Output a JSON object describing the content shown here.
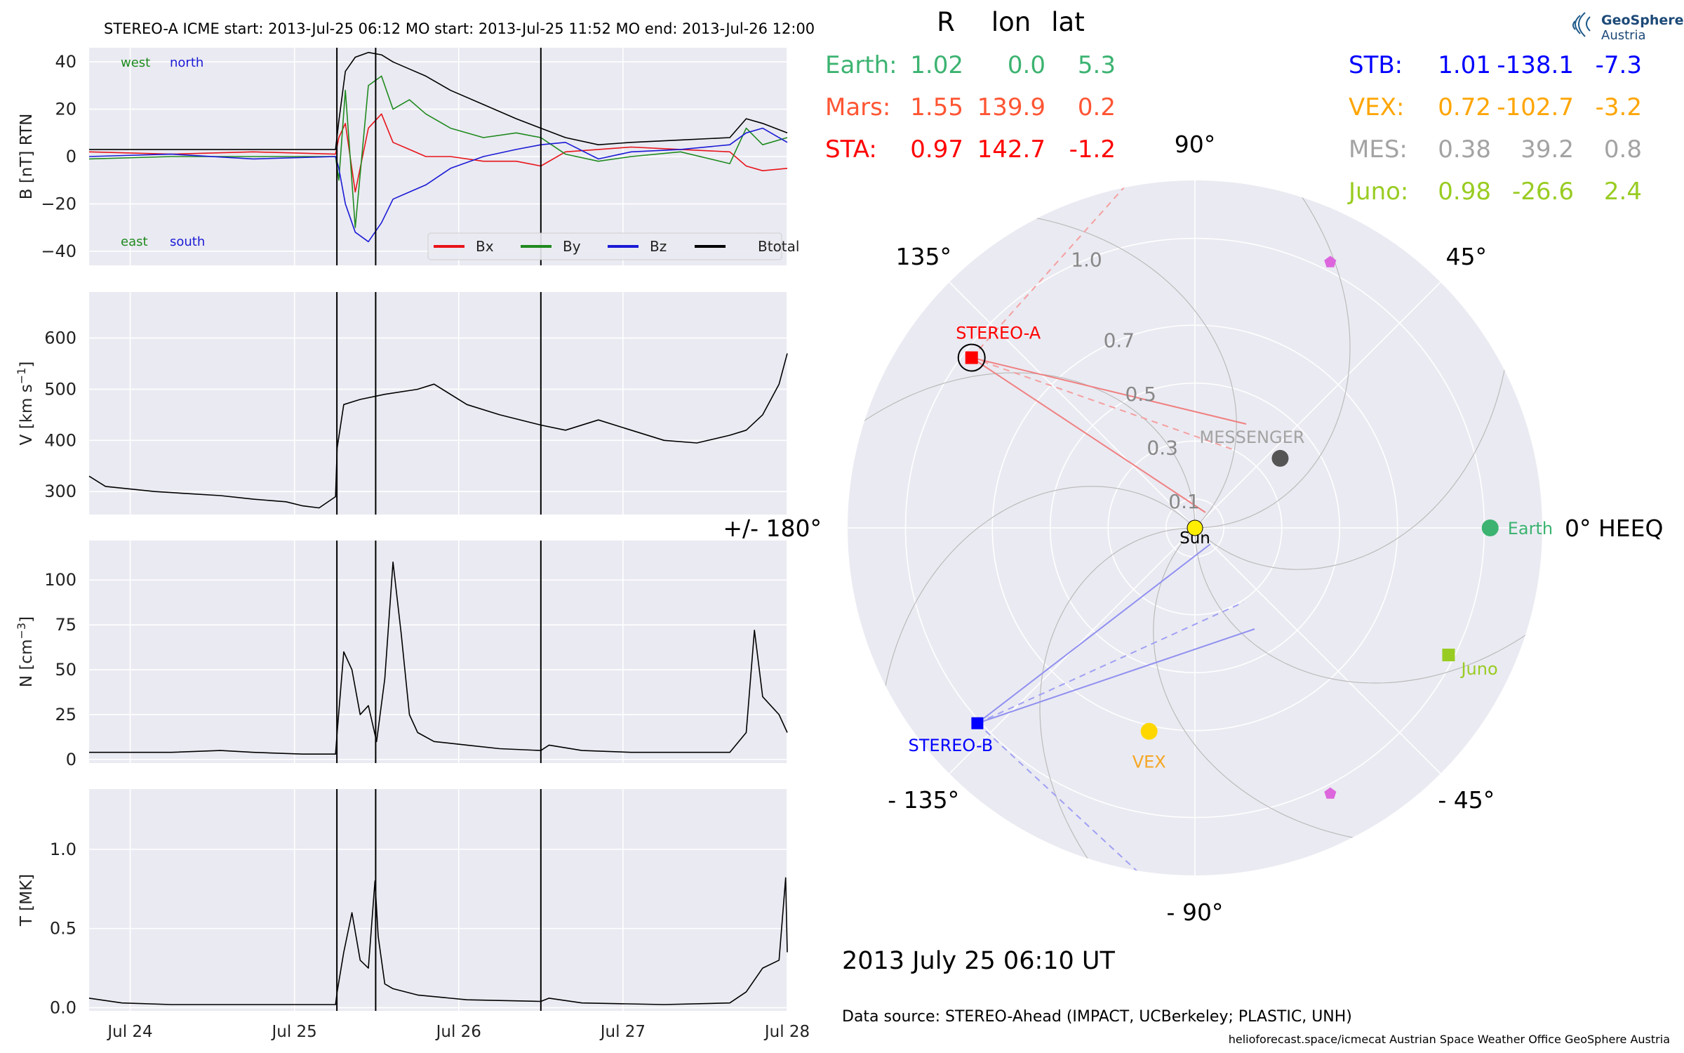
{
  "header": {
    "title": "STEREO-A    ICME start: 2013-Jul-25 06:12    MO start: 2013-Jul-25 11:52    MO end: 2013-Jul-26 12:00"
  },
  "footer": {
    "timestamp": "2013 July 25  06:10 UT",
    "source": "Data source: STEREO-Ahead (IMPACT, UCBerkeley; PLASTIC, UNH)",
    "credits": "helioforecast.space/icmecat   Austrian Space Weather Office   GeoSphere Austria"
  },
  "logo": {
    "line1": "GeoSphere",
    "line2": "Austria"
  },
  "chart_data": [
    {
      "type": "line",
      "panel": "magnetic-field",
      "ylabel": "B [nT] RTN",
      "ylim": [
        -46,
        46
      ],
      "yticks": [
        "40",
        "20",
        "0",
        "−20",
        "−40"
      ],
      "ytick_values": [
        40,
        20,
        0,
        -20,
        -40
      ],
      "xticks": [
        "Jul 24",
        "Jul 25",
        "Jul 26",
        "Jul 27",
        "Jul 28"
      ],
      "xtick_values": [
        0.25,
        1.25,
        2.25,
        3.25,
        4.25
      ],
      "xlim_days_from_jul_23_18ut": [
        0,
        4.25
      ],
      "grid": true,
      "legend_position": "lower-right",
      "annotations": [
        {
          "text": "west",
          "color": "#1f8a1f"
        },
        {
          "text": "north",
          "color": "#1a1ad6"
        },
        {
          "text": "east",
          "color": "#1f8a1f"
        },
        {
          "text": "south",
          "color": "#1a1ad6"
        }
      ],
      "event_lines": [
        "2013-07-25 06:12",
        "2013-07-25 11:52",
        "2013-07-26 12:00"
      ],
      "event_line_values": [
        1.5083,
        1.7444,
        2.75
      ],
      "series": [
        {
          "name": "Bx",
          "color": "#e8141a",
          "x": [
            0,
            0.5,
            1.0,
            1.5,
            1.52,
            1.56,
            1.62,
            1.7,
            1.78,
            1.85,
            1.95,
            2.05,
            2.2,
            2.4,
            2.6,
            2.75,
            2.9,
            3.1,
            3.3,
            3.6,
            3.9,
            4.0,
            4.1,
            4.25
          ],
          "values": [
            2,
            1,
            2,
            1,
            8,
            14,
            -15,
            12,
            18,
            6,
            3,
            0,
            0,
            -2,
            -2,
            -4,
            2,
            3,
            4,
            3,
            2,
            -4,
            -6,
            -5
          ]
        },
        {
          "name": "By",
          "color": "#1f8a1f",
          "x": [
            0,
            0.5,
            1.0,
            1.5,
            1.52,
            1.56,
            1.62,
            1.7,
            1.78,
            1.85,
            1.95,
            2.05,
            2.2,
            2.4,
            2.6,
            2.75,
            2.9,
            3.1,
            3.3,
            3.6,
            3.9,
            4.0,
            4.1,
            4.25
          ],
          "values": [
            -1,
            0,
            0,
            0,
            -10,
            28,
            -30,
            30,
            34,
            20,
            24,
            18,
            12,
            8,
            10,
            8,
            1,
            -2,
            0,
            2,
            -3,
            12,
            5,
            8
          ]
        },
        {
          "name": "Bz",
          "color": "#1a1ad6",
          "x": [
            0,
            0.5,
            1.0,
            1.5,
            1.52,
            1.56,
            1.62,
            1.7,
            1.78,
            1.85,
            1.95,
            2.05,
            2.2,
            2.4,
            2.6,
            2.75,
            2.9,
            3.1,
            3.3,
            3.6,
            3.9,
            4.0,
            4.1,
            4.25
          ],
          "values": [
            0,
            1,
            -1,
            0,
            -5,
            -20,
            -32,
            -36,
            -28,
            -18,
            -15,
            -12,
            -5,
            0,
            3,
            5,
            6,
            -1,
            2,
            3,
            5,
            10,
            12,
            6
          ]
        },
        {
          "name": "Btotal",
          "color": "#000000",
          "x": [
            0,
            0.5,
            1.0,
            1.5,
            1.52,
            1.56,
            1.62,
            1.7,
            1.78,
            1.85,
            1.95,
            2.05,
            2.2,
            2.4,
            2.6,
            2.75,
            2.9,
            3.1,
            3.3,
            3.6,
            3.9,
            4.0,
            4.1,
            4.25
          ],
          "values": [
            3,
            3,
            3,
            3,
            15,
            36,
            42,
            44,
            43,
            40,
            37,
            34,
            28,
            22,
            16,
            12,
            8,
            5,
            6,
            7,
            8,
            16,
            14,
            10
          ]
        }
      ]
    },
    {
      "type": "line",
      "panel": "speed",
      "ylabel": "V [km s",
      "ylabel_sup": "−1",
      "ylabel_end": "]",
      "ylim": [
        255,
        690
      ],
      "yticks": [
        "600",
        "500",
        "400",
        "300"
      ],
      "ytick_values": [
        600,
        500,
        400,
        300
      ],
      "grid": true,
      "series": [
        {
          "name": "V",
          "color": "#000000",
          "x": [
            0,
            0.1,
            0.4,
            0.8,
            1.0,
            1.2,
            1.3,
            1.4,
            1.5,
            1.51,
            1.55,
            1.65,
            1.8,
            2.0,
            2.1,
            2.3,
            2.5,
            2.75,
            2.9,
            3.1,
            3.3,
            3.5,
            3.7,
            3.9,
            4.0,
            4.1,
            4.2,
            4.25
          ],
          "values": [
            330,
            310,
            300,
            292,
            285,
            280,
            272,
            268,
            290,
            385,
            470,
            480,
            490,
            500,
            510,
            470,
            450,
            430,
            420,
            440,
            420,
            400,
            395,
            410,
            420,
            450,
            510,
            570
          ]
        }
      ]
    },
    {
      "type": "line",
      "panel": "density",
      "ylabel": "N [cm",
      "ylabel_sup": "−3",
      "ylabel_end": "]",
      "ylim": [
        -2,
        122
      ],
      "yticks": [
        "100",
        "75",
        "50",
        "25",
        "0"
      ],
      "ytick_values": [
        100,
        75,
        50,
        25,
        0
      ],
      "grid": true,
      "series": [
        {
          "name": "N",
          "color": "#000000",
          "x": [
            0,
            0.5,
            0.8,
            1.0,
            1.3,
            1.5,
            1.51,
            1.55,
            1.6,
            1.65,
            1.7,
            1.75,
            1.8,
            1.85,
            1.9,
            1.95,
            2.0,
            2.1,
            2.3,
            2.5,
            2.75,
            2.8,
            3.0,
            3.3,
            3.6,
            3.9,
            4.0,
            4.05,
            4.1,
            4.2,
            4.25
          ],
          "values": [
            4,
            4,
            5,
            4,
            3,
            3,
            15,
            60,
            50,
            25,
            30,
            10,
            45,
            110,
            70,
            25,
            15,
            10,
            8,
            6,
            5,
            8,
            5,
            4,
            4,
            4,
            15,
            72,
            35,
            25,
            15
          ]
        }
      ]
    },
    {
      "type": "line",
      "panel": "temperature",
      "ylabel": "T [MK]",
      "ylim": [
        -0.02,
        1.38
      ],
      "yticks": [
        "1.0",
        "0.5",
        "0.0"
      ],
      "ytick_values": [
        1.0,
        0.5,
        0.0
      ],
      "grid": true,
      "series": [
        {
          "name": "T",
          "color": "#000000",
          "x": [
            0,
            0.2,
            0.5,
            1.0,
            1.3,
            1.5,
            1.51,
            1.55,
            1.6,
            1.65,
            1.7,
            1.74,
            1.76,
            1.8,
            1.85,
            2.0,
            2.3,
            2.75,
            2.8,
            3.0,
            3.5,
            3.9,
            4.0,
            4.1,
            4.2,
            4.24,
            4.25
          ],
          "values": [
            0.06,
            0.03,
            0.02,
            0.02,
            0.02,
            0.02,
            0.1,
            0.35,
            0.6,
            0.3,
            0.25,
            0.8,
            0.45,
            0.15,
            0.12,
            0.08,
            0.05,
            0.04,
            0.06,
            0.03,
            0.02,
            0.03,
            0.1,
            0.25,
            0.3,
            0.82,
            0.35
          ]
        }
      ]
    },
    {
      "type": "scatter",
      "panel": "polar-position",
      "projection": "polar-heeq",
      "rlim": [
        0,
        1.2
      ],
      "rticks": [
        "0.1",
        "0.3",
        "0.5",
        "0.7",
        "1.0"
      ],
      "rtick_values": [
        0.1,
        0.3,
        0.5,
        0.7,
        1.0
      ],
      "angle_labels": [
        "90°",
        "45°",
        "0° HEEQ",
        "- 45°",
        "- 90°",
        "- 135°",
        "+/- 180°",
        "135°"
      ],
      "angle_label_values": [
        90,
        45,
        0,
        -45,
        -90,
        -135,
        180,
        135
      ],
      "grid": true,
      "bodies": [
        {
          "name": "Sun",
          "label": "Sun",
          "r": 0,
          "lon": 0,
          "color": "#ffee00",
          "marker": "circle"
        },
        {
          "name": "Earth",
          "label": "Earth",
          "r": 1.02,
          "lon": 0.0,
          "color": "#3cb371",
          "marker": "circle"
        },
        {
          "name": "MESSENGER",
          "label": "MESSENGER",
          "r": 0.38,
          "lon": 39.2,
          "color": "#555555",
          "label_color": "#a3a3a3",
          "marker": "circle"
        },
        {
          "name": "VEX",
          "label": "VEX",
          "r": 0.72,
          "lon": -102.7,
          "color": "#ffd700",
          "label_color": "#f5a623",
          "marker": "circle"
        },
        {
          "name": "Juno",
          "label": "Juno",
          "r": 0.98,
          "lon": -26.6,
          "color": "#99cc22",
          "marker": "square"
        },
        {
          "name": "STEREO-A",
          "label": "STEREO-A",
          "r": 0.97,
          "lon": 142.7,
          "color": "#ff0000",
          "marker": "square"
        },
        {
          "name": "STEREO-B",
          "label": "STEREO-B",
          "r": 1.01,
          "lon": -138.1,
          "color": "#0000ff",
          "marker": "square"
        },
        {
          "name": "Mars-marker-1",
          "label": "",
          "r": 1.03,
          "lon": 63,
          "color": "#dd66dd",
          "marker": "pentagon"
        },
        {
          "name": "Mars-marker-2",
          "label": "",
          "r": 1.03,
          "lon": -63,
          "color": "#dd66dd",
          "marker": "pentagon"
        }
      ],
      "position_table": {
        "headers": [
          "R",
          "lon",
          "lat"
        ],
        "left": [
          {
            "name": "Earth:",
            "R": "1.02",
            "lon": "0.0",
            "lat": "5.3",
            "color": "#3cb371"
          },
          {
            "name": "Mars:",
            "R": "1.55",
            "lon": "139.9",
            "lat": "0.2",
            "color": "#ff5533"
          },
          {
            "name": "STA:",
            "R": "0.97",
            "lon": "142.7",
            "lat": "-1.2",
            "color": "#ff0000"
          }
        ],
        "right": [
          {
            "name": "STB:",
            "R": "1.01",
            "lon": "-138.1",
            "lat": "-7.3",
            "color": "#0000ff"
          },
          {
            "name": "VEX:",
            "R": "0.72",
            "lon": "-102.7",
            "lat": "-3.2",
            "color": "#ffa500"
          },
          {
            "name": "MES:",
            "R": "0.38",
            "lon": "39.2",
            "lat": "0.8",
            "color": "#a3a3a3"
          },
          {
            "name": "Juno:",
            "R": "0.98",
            "lon": "-26.6",
            "lat": "2.4",
            "color": "#99cc22"
          }
        ]
      }
    }
  ]
}
